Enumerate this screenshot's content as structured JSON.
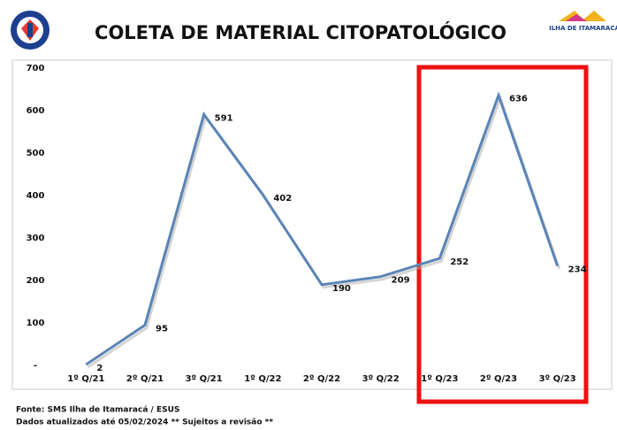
{
  "chart_data": {
    "type": "line",
    "title": "COLETA DE MATERIAL CITOPATOLÓGICO",
    "logo_text": "ILHA DE ITAMARACÁ",
    "categories": [
      "1º Q/21",
      "2º Q/21",
      "3º Q/21",
      "1º Q/22",
      "2º Q/22",
      "3º Q/22",
      "1º Q/23",
      "2º Q/23",
      "3º Q/23"
    ],
    "values": [
      2,
      95,
      591,
      402,
      190,
      209,
      252,
      636,
      234
    ],
    "color": "#5b84b6",
    "ylim": [
      0,
      700
    ],
    "yticks": [
      {
        "value": 0,
        "label": "-"
      },
      100,
      200,
      300,
      400,
      500,
      600,
      700
    ],
    "footnotes": [
      "Fonte: SMS Ilha de Itamaracá / ESUS",
      "Dados atualizados até 05/02/2024  ** Sujeitos a revisão **"
    ]
  }
}
